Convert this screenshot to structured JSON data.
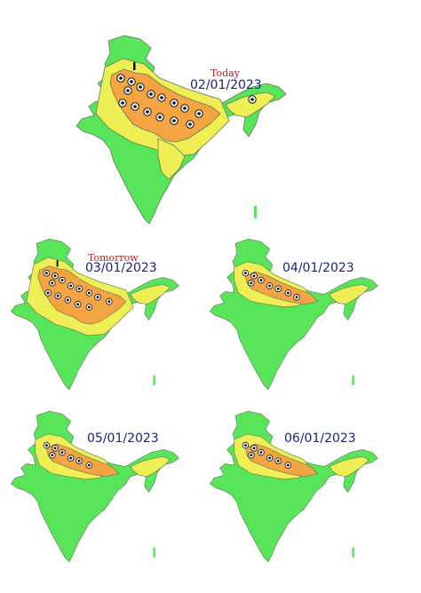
{
  "legend_colors": {
    "no_warning": "#59e55a",
    "be_aware": "#eeee55",
    "be_prepared": "#f5a443",
    "border": "#5c7a5c"
  },
  "maps": [
    {
      "key": "today",
      "tag": "Today",
      "date": "02/01/2023",
      "icons": 16,
      "tag_visible": true
    },
    {
      "key": "tomorrow",
      "tag": "Tomorrow",
      "date": "03/01/2023",
      "icons": 14,
      "tag_visible": true
    },
    {
      "key": "day3",
      "tag": "",
      "date": "04/01/2023",
      "icons": 8,
      "tag_visible": false
    },
    {
      "key": "day4",
      "tag": "",
      "date": "05/01/2023",
      "icons": 7,
      "tag_visible": false
    },
    {
      "key": "day5",
      "tag": "",
      "date": "06/01/2023",
      "icons": 7,
      "tag_visible": false
    }
  ],
  "icon_names": [
    "fog-eye-icon",
    "cold-thermometer-icon"
  ]
}
